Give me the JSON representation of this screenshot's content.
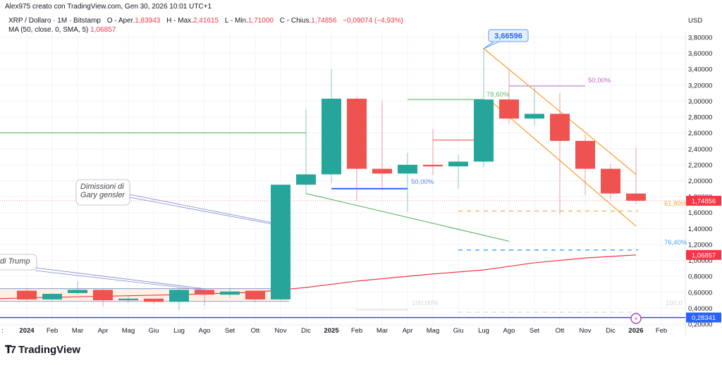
{
  "header": {
    "attribution": "Alex975 creato con TradingView.com, Gen 30, 2026 10:01 UTC+1"
  },
  "legend": {
    "symbol": "XRP / Dollaro · 1M · Bitstamp",
    "open_label": "O - Aper.",
    "open": "1,83943",
    "high_label": "H - Max.",
    "high": "2,41615",
    "low_label": "L - Min.",
    "low": "1,71000",
    "close_label": "C - Chius.",
    "close": "1,74856",
    "change": "−0,09074 (−4,93%)",
    "ma_label": "MA (50, close, 0, SMA, 5)",
    "ma_value": "1,06857"
  },
  "colors": {
    "up": "#26a69a",
    "down": "#ef5350",
    "ma": "#f23645",
    "channel": "#f7a43b",
    "fib_green": "#4caf50",
    "fib_blue": "#2962ff",
    "fib_purple": "#ba68c8",
    "support": "#3f51b5"
  },
  "annotations": {
    "peak_label": "3,66596",
    "gensler_note_line1": "Dimissioni di",
    "gensler_note_line2": "Gary gensler",
    "trump_note": "di Trump",
    "fib_786": "78,60%",
    "fib_50_purple": "50,00%",
    "fib_50_blue": "50,00%",
    "fib_618": "61,80%",
    "fib_764": "76,40%",
    "fib_100_a": "100,00%",
    "fib_100_b": "100,0"
  },
  "price_badges": {
    "last": "1,74856",
    "ma": "1,06857",
    "support": "0,28341"
  },
  "footer": {
    "brand": "TradingView"
  },
  "chart_data": {
    "type": "candlestick",
    "title": "XRP / Dollaro · 1M · Bitstamp",
    "ylabel": "USD",
    "ylim": [
      0.1,
      3.95
    ],
    "y_ticks": [
      "3,80000",
      "3,60000",
      "3,40000",
      "3,20000",
      "3,00000",
      "2,80000",
      "2,60000",
      "2,40000",
      "2,20000",
      "2,00000",
      "1,80000",
      "1,60000",
      "1,40000",
      "1,20000",
      "1,00000",
      "0,80000",
      "0,60000",
      "0,40000",
      "0,20000"
    ],
    "x_ticks": [
      "2024",
      "Feb",
      "Mar",
      "Apr",
      "Mag",
      "Giu",
      "Lug",
      "Ago",
      "Set",
      "Ott",
      "Nov",
      "Dic",
      "2025",
      "Feb",
      "Mar",
      "Apr",
      "Mag",
      "Giu",
      "Lug",
      "Ago",
      "Set",
      "Ott",
      "Nov",
      "Dic",
      "2026",
      "Feb"
    ],
    "candles": [
      {
        "t": "2024-01",
        "o": 0.62,
        "h": 0.66,
        "l": 0.49,
        "c": 0.51
      },
      {
        "t": "2024-02",
        "o": 0.51,
        "h": 0.59,
        "l": 0.49,
        "c": 0.58
      },
      {
        "t": "2024-03",
        "o": 0.59,
        "h": 0.74,
        "l": 0.57,
        "c": 0.63
      },
      {
        "t": "2024-04",
        "o": 0.63,
        "h": 0.64,
        "l": 0.42,
        "c": 0.5
      },
      {
        "t": "2024-05",
        "o": 0.5,
        "h": 0.55,
        "l": 0.47,
        "c": 0.52
      },
      {
        "t": "2024-06",
        "o": 0.52,
        "h": 0.52,
        "l": 0.45,
        "c": 0.48
      },
      {
        "t": "2024-07",
        "o": 0.48,
        "h": 0.65,
        "l": 0.38,
        "c": 0.63
      },
      {
        "t": "2024-08",
        "o": 0.63,
        "h": 0.64,
        "l": 0.43,
        "c": 0.57
      },
      {
        "t": "2024-09",
        "o": 0.57,
        "h": 0.66,
        "l": 0.53,
        "c": 0.61
      },
      {
        "t": "2024-10",
        "o": 0.62,
        "h": 0.62,
        "l": 0.48,
        "c": 0.51
      },
      {
        "t": "2024-11",
        "o": 0.51,
        "h": 1.95,
        "l": 0.5,
        "c": 1.95
      },
      {
        "t": "2024-12",
        "o": 1.95,
        "h": 2.9,
        "l": 1.84,
        "c": 2.08
      },
      {
        "t": "2025-01",
        "o": 2.08,
        "h": 3.4,
        "l": 1.97,
        "c": 3.03
      },
      {
        "t": "2025-02",
        "o": 3.03,
        "h": 3.05,
        "l": 1.75,
        "c": 2.15
      },
      {
        "t": "2025-03",
        "o": 2.15,
        "h": 3.0,
        "l": 1.88,
        "c": 2.09
      },
      {
        "t": "2025-04",
        "o": 2.09,
        "h": 2.35,
        "l": 1.61,
        "c": 2.2
      },
      {
        "t": "2025-05",
        "o": 2.2,
        "h": 2.65,
        "l": 2.07,
        "c": 2.18
      },
      {
        "t": "2025-06",
        "o": 2.18,
        "h": 2.33,
        "l": 1.9,
        "c": 2.24
      },
      {
        "t": "2025-07",
        "o": 2.24,
        "h": 3.66596,
        "l": 2.17,
        "c": 3.02
      },
      {
        "t": "2025-08",
        "o": 3.02,
        "h": 3.39,
        "l": 2.71,
        "c": 2.78
      },
      {
        "t": "2025-09",
        "o": 2.78,
        "h": 3.18,
        "l": 2.69,
        "c": 2.84
      },
      {
        "t": "2025-10",
        "o": 2.84,
        "h": 3.1,
        "l": 1.58,
        "c": 2.5
      },
      {
        "t": "2025-11",
        "o": 2.5,
        "h": 2.58,
        "l": 1.82,
        "c": 2.15
      },
      {
        "t": "2025-12",
        "o": 2.15,
        "h": 2.21,
        "l": 1.77,
        "c": 1.84
      },
      {
        "t": "2026-01",
        "o": 1.83943,
        "h": 2.41615,
        "l": 1.71,
        "c": 1.74856
      }
    ],
    "ma_series": {
      "name": "MA (50, close, 0, SMA, 5)",
      "points": [
        {
          "t": "2024-01",
          "v": 0.53
        },
        {
          "t": "2024-04",
          "v": 0.55
        },
        {
          "t": "2024-07",
          "v": 0.57
        },
        {
          "t": "2024-10",
          "v": 0.6
        },
        {
          "t": "2024-12",
          "v": 0.66
        },
        {
          "t": "2025-02",
          "v": 0.74
        },
        {
          "t": "2025-05",
          "v": 0.83
        },
        {
          "t": "2025-07",
          "v": 0.88
        },
        {
          "t": "2025-09",
          "v": 0.97
        },
        {
          "t": "2025-11",
          "v": 1.03
        },
        {
          "t": "2026-01",
          "v": 1.06857
        }
      ]
    },
    "horizontal_levels": [
      {
        "label": "0,28341",
        "value": 0.28341,
        "color": "#3f51b5"
      },
      {
        "label": "61,80%",
        "value": 1.62,
        "color": "#f7a43b",
        "style": "dashed"
      },
      {
        "label": "76,40%",
        "value": 1.13,
        "color": "#2196f3",
        "style": "dashed"
      },
      {
        "label": "100,0",
        "value": 0.35,
        "color": "#d1d4dc",
        "style": "dashed"
      }
    ],
    "last_price": 1.74856,
    "peak": 3.66596
  }
}
